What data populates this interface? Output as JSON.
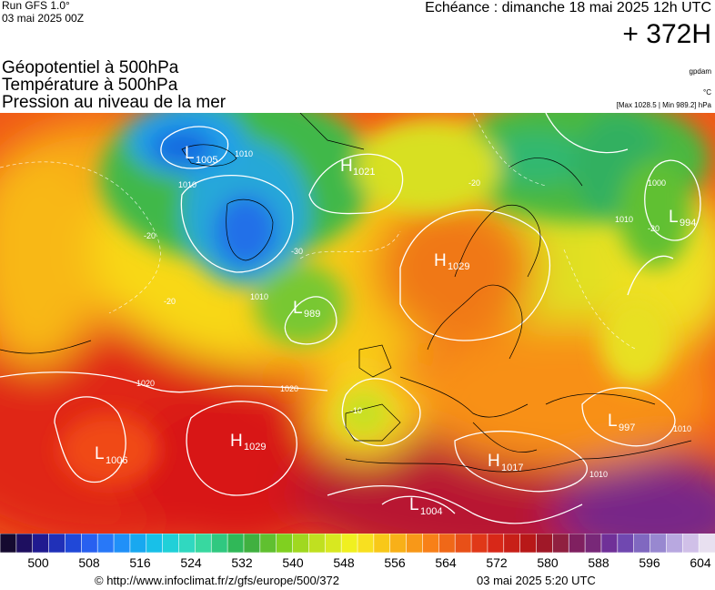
{
  "header": {
    "run": "Run GFS 1.0°",
    "run_date": "03 mai 2025 00Z",
    "echeance": "Echéance : dimanche 18 mai 2025 12h UTC",
    "horizon": "+ 372H"
  },
  "titles": [
    "Géopotentiel à 500hPa",
    "Température à 500hPa",
    "Pression au niveau de la mer"
  ],
  "units": {
    "geopotential": "gpdam",
    "temperature": "°C",
    "maxmin": "[Max 1028.5 | Min 989.2] hPa"
  },
  "pressure_systems": [
    {
      "type": "L",
      "value": "1006"
    },
    {
      "type": "L",
      "value": "1005"
    },
    {
      "type": "H",
      "value": "1021"
    },
    {
      "type": "H",
      "value": "1029"
    },
    {
      "type": "L",
      "value": "989"
    },
    {
      "type": "H",
      "value": "1029"
    },
    {
      "type": "L",
      "value": "994"
    },
    {
      "type": "L",
      "value": "997"
    },
    {
      "type": "H",
      "value": "1017"
    },
    {
      "type": "L",
      "value": "1004"
    }
  ],
  "isobar_labels": [
    "1020",
    "1020",
    "1010",
    "1010",
    "1010",
    "1010",
    "1010",
    "1000",
    "1010"
  ],
  "isotherm_labels": [
    "-20",
    "-30",
    "-20",
    "-20",
    "-10",
    "-20"
  ],
  "scale": {
    "colors": [
      "#150a30",
      "#1e0f60",
      "#201a90",
      "#2030b8",
      "#2048d8",
      "#2860f0",
      "#2878f8",
      "#2090f8",
      "#18a8f0",
      "#18c0e8",
      "#20d0d8",
      "#30d8c0",
      "#38d8a0",
      "#30c880",
      "#30b858",
      "#40b040",
      "#60c030",
      "#80d020",
      "#a0d820",
      "#c0e020",
      "#d8e820",
      "#f0f020",
      "#f8e020",
      "#f8c818",
      "#f8b018",
      "#f89818",
      "#f88018",
      "#f06818",
      "#e85018",
      "#e03818",
      "#d82818",
      "#c82018",
      "#b81818",
      "#a01828",
      "#902040",
      "#802060",
      "#782878",
      "#703098",
      "#7048b0",
      "#8068c0",
      "#9888d0",
      "#b8a8e0",
      "#d0c0e8",
      "#e8e0f0"
    ],
    "ticks": [
      "500",
      "508",
      "516",
      "524",
      "532",
      "540",
      "548",
      "556",
      "564",
      "572",
      "580",
      "588",
      "596",
      "604"
    ]
  },
  "footer": {
    "credit": "© http://www.infoclimat.fr/z/gfs/europe/500/372",
    "generated": "03 mai 2025  5:20 UTC"
  }
}
